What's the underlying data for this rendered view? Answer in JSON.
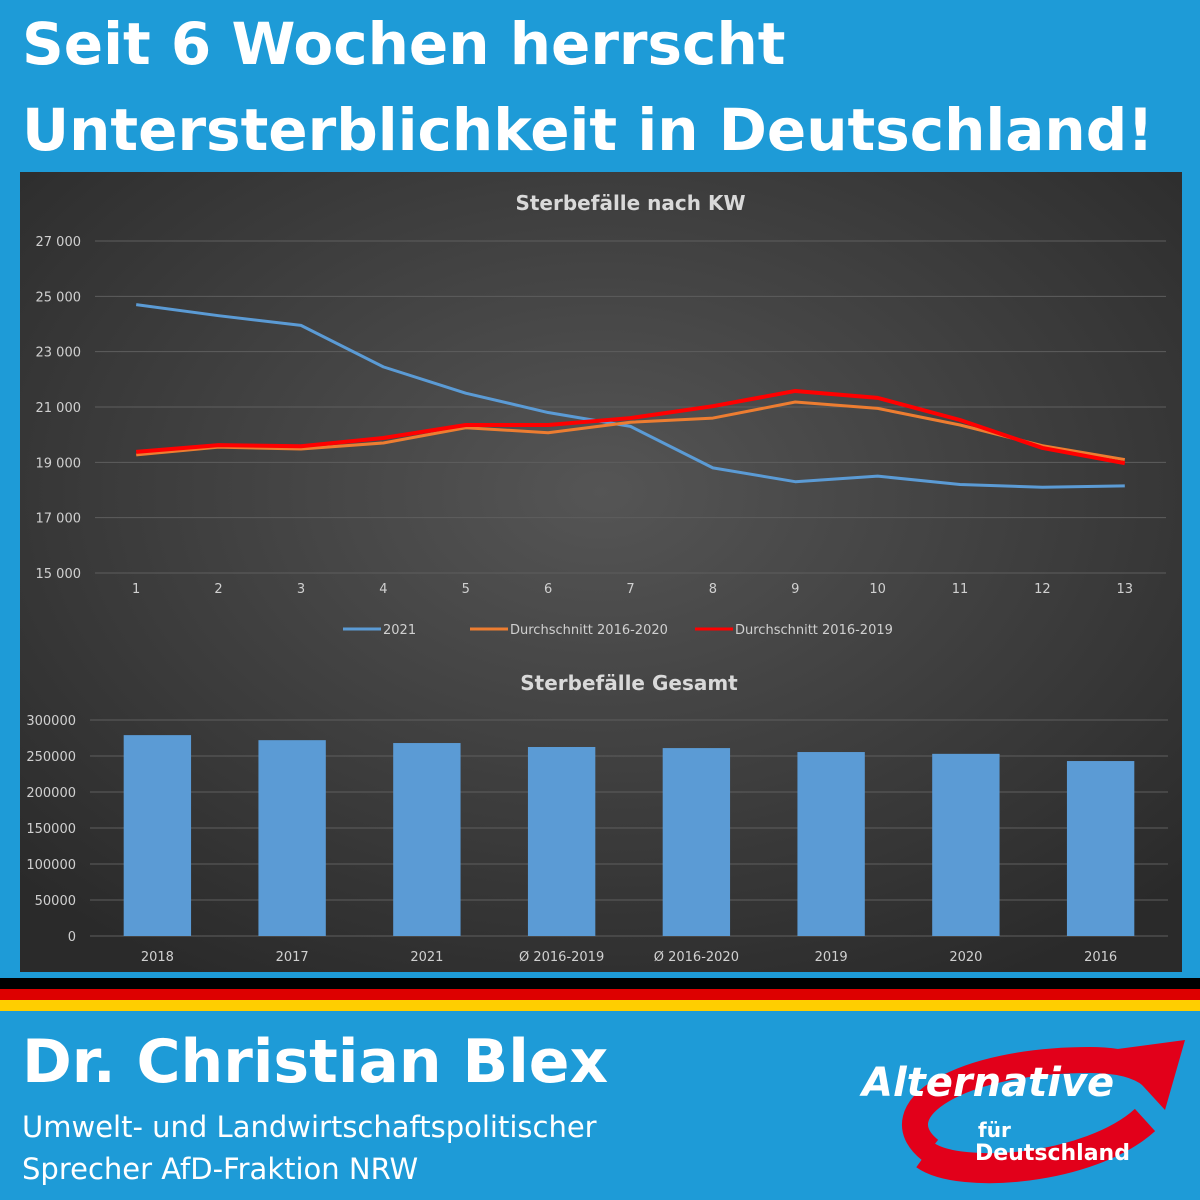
{
  "header": {
    "lines": [
      "Seit 6 Wochen herrscht",
      "Untersterblichkeit in Deutschland!"
    ]
  },
  "chart_data": [
    {
      "type": "line",
      "title": "Sterbefälle nach KW",
      "categories": [
        "1",
        "2",
        "3",
        "4",
        "5",
        "6",
        "7",
        "8",
        "9",
        "10",
        "11",
        "12",
        "13"
      ],
      "series": [
        {
          "name": "2021",
          "color": "#5b9bd5",
          "values": [
            24700,
            24300,
            23950,
            22450,
            21500,
            20800,
            20300,
            18800,
            18300,
            18500,
            18200,
            18100,
            18150
          ]
        },
        {
          "name": "Durchschnitt 2016-2020",
          "color": "#ed7d31",
          "values": [
            19270,
            19550,
            19480,
            19700,
            20250,
            20070,
            20450,
            20600,
            21180,
            20950,
            20350,
            19600,
            19100
          ]
        },
        {
          "name": "Durchschnitt 2016-2019",
          "color": "#ff0000",
          "values": [
            19380,
            19620,
            19580,
            19880,
            20350,
            20350,
            20600,
            21030,
            21580,
            21330,
            20530,
            19520,
            18970
          ]
        }
      ],
      "ylim": [
        15000,
        27000
      ],
      "yticks": [
        {
          "value": 15000,
          "label": "15 000"
        },
        {
          "value": 17000,
          "label": "17 000"
        },
        {
          "value": 19000,
          "label": "19 000"
        },
        {
          "value": 21000,
          "label": "21 000"
        },
        {
          "value": 23000,
          "label": "23 000"
        },
        {
          "value": 25000,
          "label": "25 000"
        },
        {
          "value": 27000,
          "label": "27 000"
        }
      ],
      "grid": true,
      "legend": "bottom"
    },
    {
      "type": "bar",
      "title": "Sterbefälle Gesamt",
      "categories": [
        "2018",
        "2017",
        "2021",
        "Ø 2016-2019",
        "Ø 2016-2020",
        "2019",
        "2020",
        "2016"
      ],
      "values": [
        279000,
        272000,
        268000,
        262500,
        261000,
        255500,
        253000,
        243000
      ],
      "color": "#5b9bd5",
      "ylim": [
        0,
        300000
      ],
      "yticks": [
        0,
        50000,
        100000,
        150000,
        200000,
        250000,
        300000
      ],
      "grid": true
    }
  ],
  "footer": {
    "name": "Dr. Christian Blex",
    "lines": [
      "Umwelt- und Landwirtschaftspolitischer",
      "Sprecher AfD-Fraktion NRW"
    ]
  },
  "logo": {
    "word": "Alternative",
    "small": "für",
    "country": "Deutschland"
  }
}
